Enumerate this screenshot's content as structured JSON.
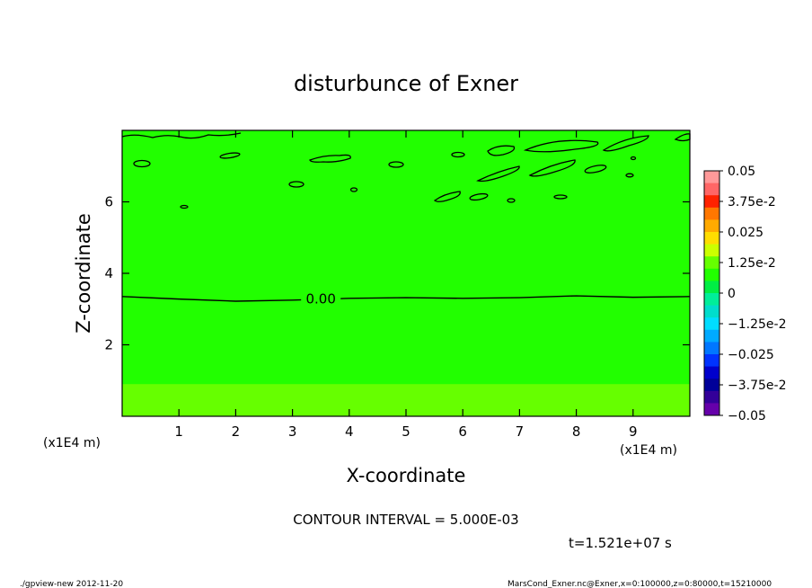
{
  "chart_data": {
    "type": "contour",
    "title": "disturbunce of Exner",
    "xlabel": "X-coordinate",
    "ylabel": "Z-coordinate",
    "x_unit": "(x1E4 m)",
    "y_unit": "(x1E4 m)",
    "xlim": [
      0,
      10
    ],
    "ylim": [
      0,
      8
    ],
    "xticks": [
      1,
      2,
      3,
      4,
      5,
      6,
      7,
      8,
      9
    ],
    "yticks": [
      2,
      4,
      6
    ],
    "contour_label": "0.00",
    "contour_label_x": 3.5,
    "zero_contour": [
      [
        0,
        3.35
      ],
      [
        1,
        3.28
      ],
      [
        2,
        3.22
      ],
      [
        3,
        3.25
      ],
      [
        4,
        3.3
      ],
      [
        5,
        3.32
      ],
      [
        6,
        3.3
      ],
      [
        7,
        3.32
      ],
      [
        8,
        3.37
      ],
      [
        9,
        3.33
      ],
      [
        10,
        3.35
      ]
    ],
    "lower_band_top_z": 0.9,
    "colorbar": {
      "labels": [
        "0.05",
        "3.75e-2",
        "0.025",
        "1.25e-2",
        "0",
        "−1.25e-2",
        "−0.025",
        "−3.75e-2",
        "−0.05"
      ],
      "colors": [
        "#ff9999",
        "#ff6666",
        "#ff2200",
        "#ff7700",
        "#ffaa00",
        "#ffdd00",
        "#ccff00",
        "#66ff00",
        "#22ff00",
        "#00ee44",
        "#00ee99",
        "#00ddcc",
        "#00ddff",
        "#00aaff",
        "#0077ff",
        "#0033ff",
        "#0000cc",
        "#000099",
        "#330099",
        "#6600aa"
      ],
      "field_color_upper": "#22ff00",
      "field_color_lower": "#66ff00"
    },
    "contour_interval_text": "CONTOUR INTERVAL = 5.000E-03",
    "time_text": "t=1.521e+07 s"
  },
  "footer": {
    "left": "./gpview-new  2012-11-20",
    "right": "MarsCond_Exner.nc@Exner,x=0:100000,z=0:80000,t=15210000"
  }
}
